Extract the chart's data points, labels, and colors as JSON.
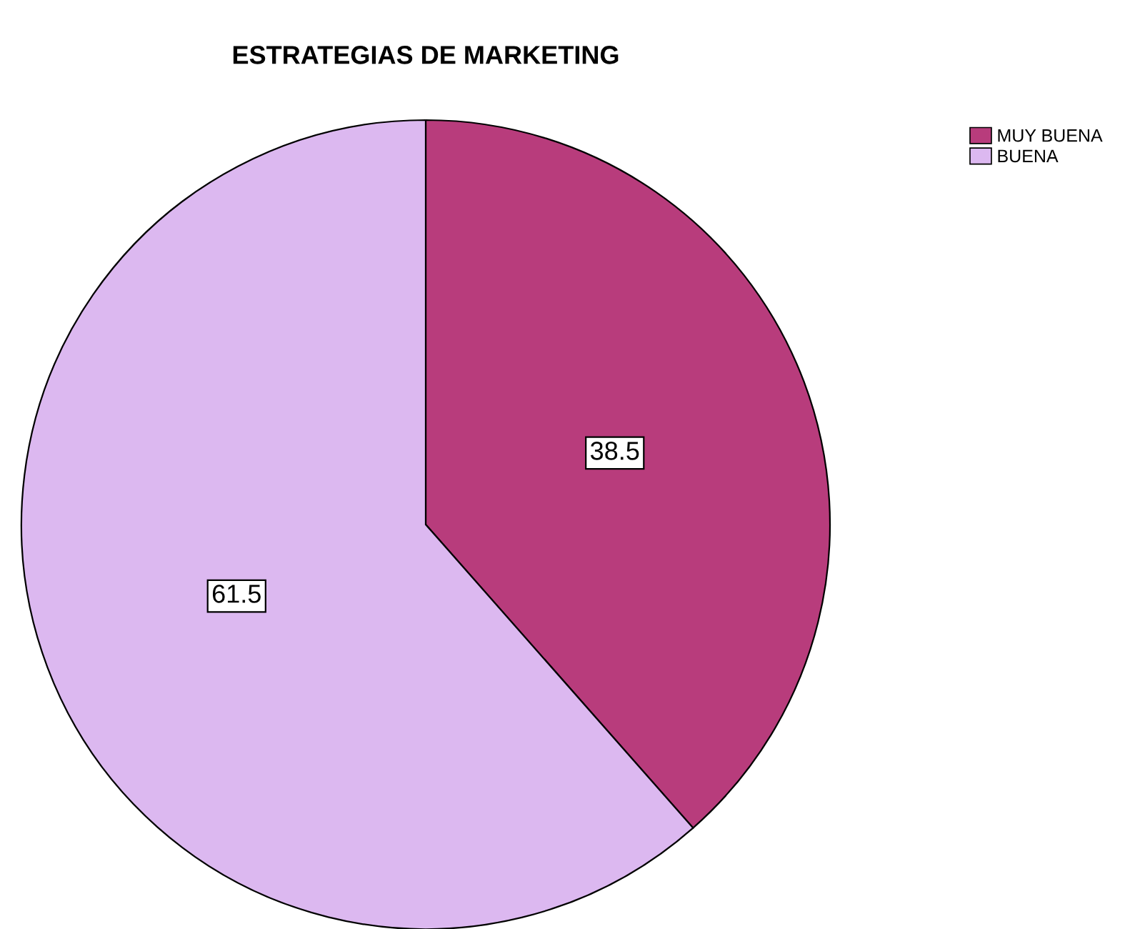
{
  "chart_data": {
    "type": "pie",
    "title": "ESTRATEGIAS DE MARKETING",
    "categories": [
      "MUY BUENA",
      "BUENA"
    ],
    "values": [
      38.5,
      61.5
    ],
    "colors": [
      "#b83c7c",
      "#dcb8f0"
    ],
    "data_labels": true,
    "legend": "top right"
  }
}
